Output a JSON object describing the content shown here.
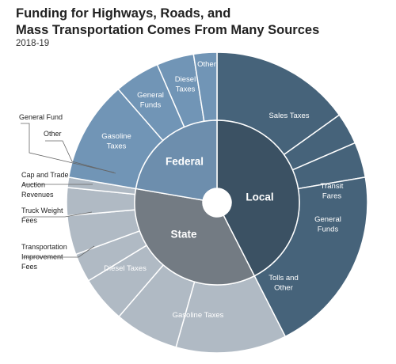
{
  "chart_data": {
    "type": "sunburst",
    "title_lines": [
      "Funding for Highways, Roads, and",
      "Mass Transportation Comes From Many Sources"
    ],
    "subtitle": "2018-19",
    "colors": {
      "local": "#3b5163",
      "local_outer": "#46637a",
      "federal": "#6d8ead",
      "federal_outer": "#7195b6",
      "state": "#737b83",
      "state_outer": "#b0bac4",
      "border": "#ffffff"
    },
    "inner": [
      {
        "name": "Local",
        "share": 0.425
      },
      {
        "name": "State",
        "share": 0.352
      },
      {
        "name": "Federal",
        "share": 0.223
      }
    ],
    "outer": [
      {
        "group": "Local",
        "label": "Sales Taxes",
        "share": 0.151
      },
      {
        "group": "Local",
        "label": "Transit Fares",
        "share": 0.034
      },
      {
        "group": "Local",
        "label": "General Funds",
        "share": 0.038
      },
      {
        "group": "Local",
        "label": "Tolls and Other",
        "share": 0.202
      },
      {
        "group": "State",
        "label": "Gasoline Taxes",
        "share": 0.119
      },
      {
        "group": "State",
        "label": "Diesel Taxes",
        "share": 0.069
      },
      {
        "group": "State",
        "label": "Transportation Improvement Fees",
        "share": 0.05
      },
      {
        "group": "State",
        "label": "Truck Weight Fees",
        "share": 0.031
      },
      {
        "group": "State",
        "label": "Cap and Trade Auction Revenues",
        "share": 0.042
      },
      {
        "group": "State",
        "label": "Other",
        "share": 0.03
      },
      {
        "group": "State",
        "label": "General Fund",
        "share": 0.011
      },
      {
        "group": "Federal",
        "label": "Gasoline Taxes",
        "share": 0.109
      },
      {
        "group": "Federal",
        "label": "General Funds",
        "share": 0.049
      },
      {
        "group": "Federal",
        "label": "Diesel Taxes",
        "share": 0.04
      },
      {
        "group": "Federal",
        "label": "Other",
        "share": 0.025
      }
    ]
  }
}
